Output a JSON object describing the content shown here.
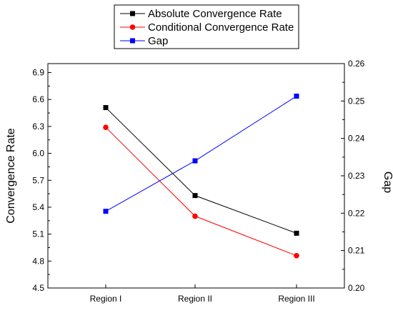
{
  "chart_data": {
    "type": "line",
    "categories": [
      "Region I",
      "Region II",
      "Region III"
    ],
    "series": [
      {
        "name": "Absolute Convergence Rate",
        "axis": "left",
        "color": "#000000",
        "marker": "square",
        "values": [
          6.51,
          5.53,
          5.11
        ]
      },
      {
        "name": "Conditional Convergence Rate",
        "axis": "left",
        "color": "#ff0000",
        "marker": "circle",
        "values": [
          6.29,
          5.3,
          4.86
        ]
      },
      {
        "name": "Gap",
        "axis": "right",
        "color": "#0000ff",
        "marker": "square",
        "values": [
          0.2205,
          0.234,
          0.2513
        ]
      }
    ],
    "ylabel": "Convergence Rate",
    "ylim": [
      4.5,
      7.0
    ],
    "yticks": [
      "4.5",
      "4.8",
      "5.1",
      "5.4",
      "5.7",
      "6.0",
      "6.3",
      "6.6",
      "6.9"
    ],
    "y2label": "Gap",
    "y2lim": [
      0.2,
      0.26
    ],
    "y2ticks": [
      "0.20",
      "0.21",
      "0.22",
      "0.23",
      "0.24",
      "0.25",
      "0.26"
    ],
    "legend_position": "top-center",
    "grid": false
  }
}
